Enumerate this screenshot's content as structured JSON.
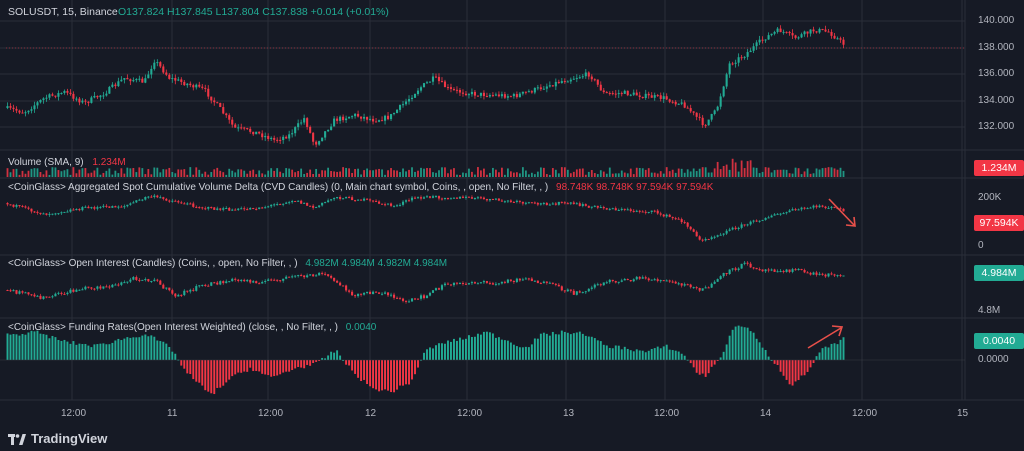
{
  "header": {
    "symbol": "SOLUSDT, 15, Binance",
    "ohlc": "O137.824  H137.845  L137.804  C137.838  +0.014 (+0.01%)"
  },
  "main_axis": [
    "140.000",
    "138.000",
    "136.000",
    "134.000",
    "132.000"
  ],
  "volume": {
    "title": "Volume (SMA, 9)",
    "value": "1.234M",
    "tag": "1.234M"
  },
  "cvd": {
    "title": "<CoinGlass> Aggregated Spot Cumulative Volume Delta (CVD Candles) (0, Main chart symbol, Coins, , open, No Filter, , )",
    "values": "98.748K  98.748K  97.594K  97.594K",
    "axis_top": "200K",
    "axis_zero": "0",
    "tag": "97.594K"
  },
  "oi": {
    "title": "<CoinGlass> Open Interest (Candles) (Coins, , open, No Filter, , )",
    "values": "4.982M  4.984M  4.982M  4.984M",
    "axis_bottom": "4.8M",
    "tag": "4.984M"
  },
  "funding": {
    "title": "<CoinGlass> Funding Rates(Open Interest Weighted) (close, , No Filter, , )",
    "value": "0.0040",
    "tag": "0.0040",
    "axis_zero": "0.0000"
  },
  "time_axis": [
    "12:00",
    "11",
    "12:00",
    "12",
    "12:00",
    "13",
    "12:00",
    "14",
    "12:00",
    "15"
  ],
  "footer": {
    "brand": "TradingView"
  },
  "colors": {
    "up": "#22ab94",
    "down": "#f23645",
    "bg": "#161a25",
    "grid": "#2a2e39",
    "annotation": "#e8504a"
  }
}
